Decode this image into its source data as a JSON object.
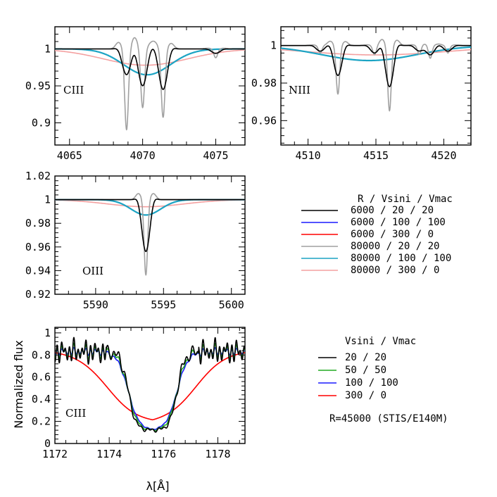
{
  "chart_data": [
    {
      "id": "ciii-4070",
      "type": "line",
      "label": "CIII",
      "xlim": [
        4064,
        4077
      ],
      "ylim": [
        0.87,
        1.03
      ],
      "xticks": [
        4065,
        4070,
        4075
      ],
      "yticks": [
        0.9,
        0.95,
        1
      ],
      "ytick_labels": [
        "0.9",
        "0.95",
        "1"
      ],
      "lines_nm": [
        4068.9,
        4070.0,
        4071.4,
        4075.0
      ],
      "depths": {
        "6000 / 20 / 20": [
          0.035,
          0.05,
          0.055,
          0.006
        ],
        "80000 / 20 / 20": [
          0.11,
          0.08,
          0.093,
          0.012
        ]
      },
      "broad": {
        "80000 / 100 / 100": {
          "center": 4070.3,
          "depth": 0.035,
          "width": 1.6
        },
        "80000 / 300 / 0": {
          "center": 4070.2,
          "depth": 0.022,
          "width": 2.9
        }
      }
    },
    {
      "id": "niii-4515",
      "type": "line",
      "label": "NIII",
      "xlim": [
        4508,
        4522
      ],
      "ylim": [
        0.947,
        1.01
      ],
      "xticks": [
        4510,
        4515,
        4520
      ],
      "yticks": [
        0.96,
        0.98,
        1
      ],
      "ytick_labels": [
        "0.96",
        "0.98",
        "1"
      ],
      "lines_nm": [
        4510.9,
        4512.2,
        4514.9,
        4516.0,
        4518.2,
        4519.0,
        4520.3
      ],
      "depths": {
        "6000 / 20 / 20": [
          0.003,
          0.016,
          0.004,
          0.022,
          0.003,
          0.005,
          0.003
        ],
        "80000 / 20 / 20": [
          0.004,
          0.026,
          0.005,
          0.035,
          0.005,
          0.007,
          0.004
        ]
      },
      "broad": {
        "80000 / 100 / 100": {
          "center": 4514.5,
          "depth": 0.008,
          "width": 3.5
        },
        "80000 / 300 / 0": {
          "center": 4515.0,
          "depth": 0.005,
          "width": 5.5
        }
      }
    },
    {
      "id": "oiii-5592",
      "type": "line",
      "label": "OIII",
      "xlim": [
        5587,
        5601
      ],
      "ylim": [
        0.92,
        1.02
      ],
      "xticks": [
        5590,
        5595,
        5600
      ],
      "yticks": [
        0.92,
        0.94,
        0.96,
        0.98,
        1,
        1.02
      ],
      "ytick_labels": [
        "0.92",
        "0.94",
        "0.96",
        "0.98",
        "1",
        "1.02"
      ],
      "lines_nm": [
        5593.7
      ],
      "depths": {
        "6000 / 20 / 20": [
          0.044
        ],
        "80000 / 20 / 20": [
          0.064
        ]
      },
      "broad": {
        "80000 / 100 / 100": {
          "center": 5593.7,
          "depth": 0.013,
          "width": 1.1
        },
        "80000 / 300 / 0": {
          "center": 5593.7,
          "depth": 0.006,
          "width": 2.8
        }
      }
    },
    {
      "id": "ciii-1175",
      "type": "line",
      "label": "CIII",
      "xlim": [
        1172,
        1179
      ],
      "ylim": [
        0,
        1.05
      ],
      "xticks": [
        1172,
        1174,
        1176,
        1178
      ],
      "yticks": [
        0,
        0.2,
        0.4,
        0.6,
        0.8,
        1
      ],
      "ytick_labels": [
        "0",
        "0.2",
        "0.4",
        "0.6",
        "0.8",
        "1"
      ],
      "xlabel": "λ[Å]",
      "ylabel": "Normalized flux",
      "profile": {
        "continuum": 0.83,
        "center": 1175.6,
        "core": 0.12,
        "half_width": {
          "20 / 20": 0.9,
          "50 / 50": 0.9,
          "100 / 100": 0.9,
          "300 / 0": 1.6
        },
        "edge_sharpness": {
          "20 / 20": 0.14,
          "50 / 50": 0.17,
          "100 / 100": 0.2,
          "300 / 0": 0.55
        }
      }
    }
  ],
  "legend_top": {
    "title": "R / Vsini / Vmac",
    "entries": [
      {
        "label": "6000 / 20 / 20",
        "color": "#000000"
      },
      {
        "label": "6000 / 100 / 100",
        "color": "#1a1aff"
      },
      {
        "label": "6000 / 300 / 0",
        "color": "#ff0000"
      },
      {
        "label": "80000 / 20 / 20",
        "color": "#a0a0a0"
      },
      {
        "label": "80000 / 100 / 100",
        "color": "#1ca4c4"
      },
      {
        "label": "80000 / 300 / 0",
        "color": "#f4a0a0"
      }
    ]
  },
  "legend_bottom": {
    "title": "Vsini / Vmac",
    "entries": [
      {
        "label": "20 / 20",
        "color": "#000000"
      },
      {
        "label": "50 / 50",
        "color": "#22aa22"
      },
      {
        "label": "100 / 100",
        "color": "#1a1aff"
      },
      {
        "label": "300 / 0",
        "color": "#ff0000"
      }
    ],
    "note": "R=45000 (STIS/E140M)"
  }
}
